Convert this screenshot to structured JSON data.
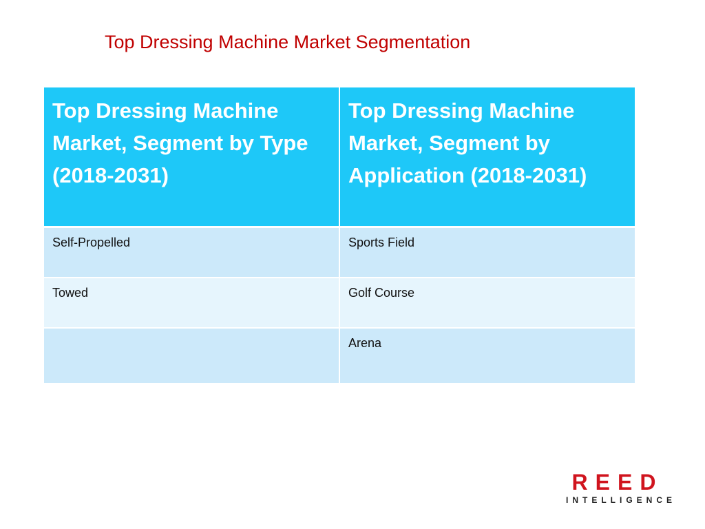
{
  "title": "Top Dressing Machine Market Segmentation",
  "table": {
    "headers": [
      "Top Dressing Machine Market, Segment by Type (2018-2031)",
      "Top Dressing Machine Market, Segment by Application (2018-2031)"
    ],
    "rows": [
      [
        "Self-Propelled",
        "Sports Field"
      ],
      [
        "Towed",
        "Golf Course"
      ],
      [
        "",
        "Arena"
      ]
    ]
  },
  "logo": {
    "main": "REED",
    "sub": "INTELLIGENCE"
  },
  "colors": {
    "title": "#c00000",
    "header_bg": "#1ec8f8",
    "row_dark": "#cce9fa",
    "row_light": "#e6f5fd",
    "logo_red": "#d0141e"
  }
}
